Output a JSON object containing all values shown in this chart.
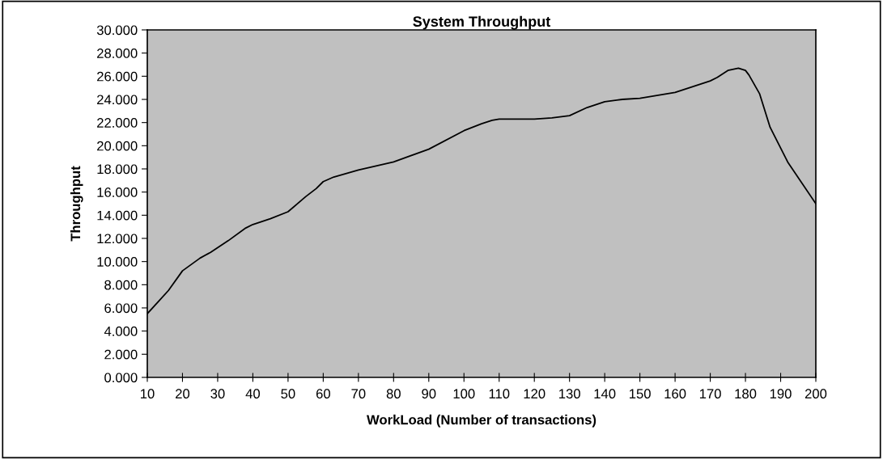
{
  "chart_data": {
    "type": "line",
    "title": "System Throughput",
    "xlabel": "WorkLoad (Number of transactions)",
    "ylabel": "Throughput",
    "x": [
      10,
      13,
      16,
      20,
      25,
      28,
      33,
      38,
      40,
      45,
      50,
      55,
      58,
      60,
      63,
      70,
      80,
      90,
      100,
      105,
      108,
      110,
      120,
      125,
      130,
      135,
      140,
      145,
      150,
      160,
      170,
      172,
      175,
      178,
      180,
      181,
      184,
      187,
      192,
      200
    ],
    "series": [
      {
        "color": "#000000",
        "values": [
          5.5,
          6.5,
          7.5,
          9.2,
          10.3,
          10.8,
          11.8,
          12.9,
          13.2,
          13.7,
          14.3,
          15.6,
          16.3,
          16.9,
          17.3,
          17.9,
          18.6,
          19.7,
          21.3,
          21.9,
          22.2,
          22.3,
          22.3,
          22.4,
          22.6,
          23.3,
          23.8,
          24.0,
          24.1,
          24.6,
          25.6,
          25.9,
          26.5,
          26.7,
          26.5,
          26.1,
          24.5,
          21.6,
          18.6,
          15.0
        ]
      }
    ],
    "xlim": [
      10,
      200
    ],
    "xticks": [
      10,
      20,
      30,
      40,
      50,
      60,
      70,
      80,
      90,
      100,
      110,
      120,
      130,
      140,
      150,
      160,
      170,
      180,
      190,
      200
    ],
    "ylim": [
      0,
      30
    ],
    "yticks": [
      {
        "value": 0,
        "label": "0.000"
      },
      {
        "value": 2,
        "label": "2.000"
      },
      {
        "value": 4,
        "label": "4.000"
      },
      {
        "value": 6,
        "label": "6.000"
      },
      {
        "value": 8,
        "label": "8.000"
      },
      {
        "value": 10,
        "label": "10.000"
      },
      {
        "value": 12,
        "label": "12.000"
      },
      {
        "value": 14,
        "label": "14.000"
      },
      {
        "value": 16,
        "label": "16.000"
      },
      {
        "value": 18,
        "label": "18.000"
      },
      {
        "value": 20,
        "label": "20.000"
      },
      {
        "value": 22,
        "label": "22.000"
      },
      {
        "value": 24,
        "label": "24.000"
      },
      {
        "value": 26,
        "label": "26.000"
      },
      {
        "value": 28,
        "label": "28.000"
      },
      {
        "value": 30,
        "label": "30.000"
      }
    ],
    "grid": false,
    "legend": false,
    "marker": "none",
    "line_style": "solid"
  }
}
